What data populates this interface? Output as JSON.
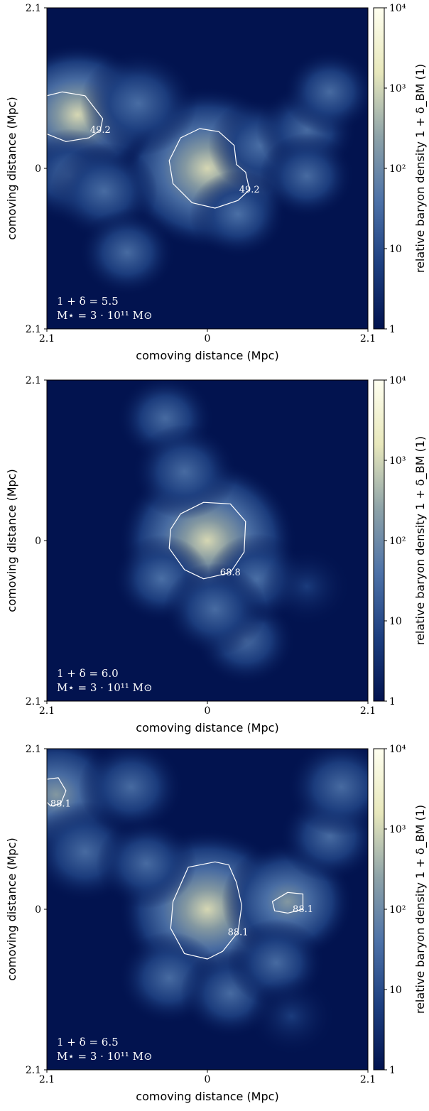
{
  "chart_data": [
    {
      "type": "heatmap",
      "panel_label": "top",
      "xlabel": "comoving distance (Mpc)",
      "ylabel": "comoving distance (Mpc)",
      "x_ticks": [
        "2.1",
        "0",
        "2.1"
      ],
      "y_ticks": [
        "2.1",
        "0",
        "2.1"
      ],
      "xlim": [
        -2.1,
        2.1
      ],
      "ylim": [
        -2.1,
        2.1
      ],
      "colorbar": {
        "label": "relative baryon density 1 + δ_BM (1)",
        "scale": "log",
        "range": [
          1,
          10000
        ],
        "ticks": [
          "1",
          "10",
          "10²",
          "10³",
          "10⁴"
        ],
        "colors": [
          "#02134f",
          "#1d3f80",
          "#4d72a8",
          "#8ea3a8",
          "#e8e8bc",
          "#fffff0"
        ]
      },
      "annotation_lines": [
        "1 + δ = 5.5",
        "M⋆ = 3 · 10¹¹ M⊙"
      ],
      "contour_level": "49.2",
      "contour_labels": [
        "49.2",
        "49.2"
      ],
      "blobs": [
        {
          "x": 0.0,
          "y": 0.0,
          "peak": 3500
        },
        {
          "x": -1.7,
          "y": 0.7,
          "peak": 900
        },
        {
          "x": -1.8,
          "y": -0.1,
          "peak": 40
        },
        {
          "x": -1.35,
          "y": -0.3,
          "peak": 45
        },
        {
          "x": -0.9,
          "y": 0.85,
          "peak": 80
        },
        {
          "x": -1.05,
          "y": -1.1,
          "peak": 25
        },
        {
          "x": 0.7,
          "y": 0.3,
          "peak": 40
        },
        {
          "x": 1.3,
          "y": 0.5,
          "peak": 30
        },
        {
          "x": 1.6,
          "y": 1.0,
          "peak": 20
        },
        {
          "x": 1.3,
          "y": -0.1,
          "peak": 22
        },
        {
          "x": 0.4,
          "y": -0.6,
          "peak": 25
        }
      ],
      "contours": [
        {
          "label_index": 0,
          "points": [
            [
              -2.1,
              0.95
            ],
            [
              -1.9,
              1.0
            ],
            [
              -1.6,
              0.95
            ],
            [
              -1.37,
              0.65
            ],
            [
              -1.4,
              0.5
            ],
            [
              -1.55,
              0.4
            ],
            [
              -1.85,
              0.35
            ],
            [
              -2.1,
              0.45
            ]
          ]
        },
        {
          "label_index": 1,
          "points": [
            [
              -0.35,
              0.4
            ],
            [
              -0.1,
              0.52
            ],
            [
              0.15,
              0.48
            ],
            [
              0.35,
              0.3
            ],
            [
              0.38,
              0.05
            ],
            [
              0.5,
              -0.05
            ],
            [
              0.55,
              -0.28
            ],
            [
              0.4,
              -0.42
            ],
            [
              0.1,
              -0.52
            ],
            [
              -0.2,
              -0.45
            ],
            [
              -0.45,
              -0.2
            ],
            [
              -0.5,
              0.1
            ]
          ]
        }
      ]
    },
    {
      "type": "heatmap",
      "panel_label": "middle",
      "xlabel": "comoving distance (Mpc)",
      "ylabel": "comoving distance (Mpc)",
      "x_ticks": [
        "2.1",
        "0",
        "2.1"
      ],
      "y_ticks": [
        "2.1",
        "0",
        "2.1"
      ],
      "xlim": [
        -2.1,
        2.1
      ],
      "ylim": [
        -2.1,
        2.1
      ],
      "colorbar": {
        "label": "relative baryon density 1 + δ_BM (1)",
        "scale": "log",
        "range": [
          1,
          10000
        ],
        "ticks": [
          "1",
          "10",
          "10²",
          "10³",
          "10⁴"
        ],
        "colors": [
          "#02134f",
          "#1d3f80",
          "#4d72a8",
          "#8ea3a8",
          "#e8e8bc",
          "#fffff0"
        ]
      },
      "annotation_lines": [
        "1 + δ = 6.0",
        "M⋆ = 3 · 10¹¹ M⊙"
      ],
      "contour_level": "68.8",
      "contour_labels": [
        "68.8"
      ],
      "blobs": [
        {
          "x": 0.0,
          "y": 0.0,
          "peak": 3000
        },
        {
          "x": -0.55,
          "y": 1.6,
          "peak": 25
        },
        {
          "x": -0.3,
          "y": 0.9,
          "peak": 40
        },
        {
          "x": 0.5,
          "y": -1.3,
          "peak": 30
        },
        {
          "x": 0.65,
          "y": -0.5,
          "peak": 30
        },
        {
          "x": -0.6,
          "y": -0.5,
          "peak": 25
        },
        {
          "x": 0.1,
          "y": -0.9,
          "peak": 35
        },
        {
          "x": 1.3,
          "y": -0.6,
          "peak": 15
        }
      ],
      "contours": [
        {
          "label_index": 0,
          "points": [
            [
              -0.35,
              0.35
            ],
            [
              -0.05,
              0.5
            ],
            [
              0.3,
              0.48
            ],
            [
              0.5,
              0.25
            ],
            [
              0.48,
              -0.15
            ],
            [
              0.3,
              -0.42
            ],
            [
              -0.05,
              -0.5
            ],
            [
              -0.3,
              -0.38
            ],
            [
              -0.5,
              -0.1
            ],
            [
              -0.48,
              0.15
            ]
          ]
        }
      ]
    },
    {
      "type": "heatmap",
      "panel_label": "bottom",
      "xlabel": "comoving distance (Mpc)",
      "ylabel": "comoving distance (Mpc)",
      "x_ticks": [
        "2.1",
        "0",
        "2.1"
      ],
      "y_ticks": [
        "2.1",
        "0",
        "2.1"
      ],
      "xlim": [
        -2.1,
        2.1
      ],
      "ylim": [
        -2.1,
        2.1
      ],
      "colorbar": {
        "label": "relative baryon density 1 + δ_BM (1)",
        "scale": "log",
        "range": [
          1,
          10000
        ],
        "ticks": [
          "1",
          "10",
          "10²",
          "10³",
          "10⁴"
        ],
        "colors": [
          "#02134f",
          "#1d3f80",
          "#4d72a8",
          "#8ea3a8",
          "#e8e8bc",
          "#fffff0"
        ]
      },
      "annotation_lines": [
        "1 + δ = 6.5",
        "M⋆ = 3 · 10¹¹ M⊙"
      ],
      "contour_level": "88.1",
      "contour_labels": [
        "88.1",
        "88.1",
        "88.1"
      ],
      "blobs": [
        {
          "x": 0.0,
          "y": 0.0,
          "peak": 3000
        },
        {
          "x": -1.98,
          "y": 1.5,
          "peak": 300
        },
        {
          "x": -1.6,
          "y": 0.75,
          "peak": 60
        },
        {
          "x": 1.05,
          "y": 0.1,
          "peak": 200
        },
        {
          "x": 1.6,
          "y": 0.95,
          "peak": 30
        },
        {
          "x": 1.75,
          "y": 1.6,
          "peak": 50
        },
        {
          "x": -1.0,
          "y": 1.6,
          "peak": 40
        },
        {
          "x": -0.5,
          "y": -0.9,
          "peak": 35
        },
        {
          "x": 0.3,
          "y": -1.1,
          "peak": 30
        },
        {
          "x": -0.8,
          "y": 0.6,
          "peak": 30
        },
        {
          "x": 0.9,
          "y": -0.7,
          "peak": 25
        },
        {
          "x": 1.1,
          "y": -1.4,
          "peak": 15
        }
      ],
      "contours": [
        {
          "label_index": 0,
          "points": [
            [
              -2.1,
              1.7
            ],
            [
              -1.95,
              1.72
            ],
            [
              -1.85,
              1.55
            ],
            [
              -1.92,
              1.38
            ],
            [
              -2.05,
              1.35
            ],
            [
              -2.1,
              1.4
            ]
          ]
        },
        {
          "label_index": 1,
          "points": [
            [
              -0.25,
              0.55
            ],
            [
              0.1,
              0.62
            ],
            [
              0.28,
              0.58
            ],
            [
              0.38,
              0.35
            ],
            [
              0.45,
              0.05
            ],
            [
              0.4,
              -0.3
            ],
            [
              0.2,
              -0.55
            ],
            [
              0.0,
              -0.65
            ],
            [
              -0.3,
              -0.58
            ],
            [
              -0.48,
              -0.25
            ],
            [
              -0.45,
              0.1
            ]
          ]
        },
        {
          "label_index": 2,
          "points": [
            [
              0.85,
              0.1
            ],
            [
              1.05,
              0.22
            ],
            [
              1.25,
              0.2
            ],
            [
              1.25,
              0.0
            ],
            [
              1.05,
              -0.05
            ],
            [
              0.88,
              -0.02
            ]
          ]
        }
      ]
    }
  ]
}
